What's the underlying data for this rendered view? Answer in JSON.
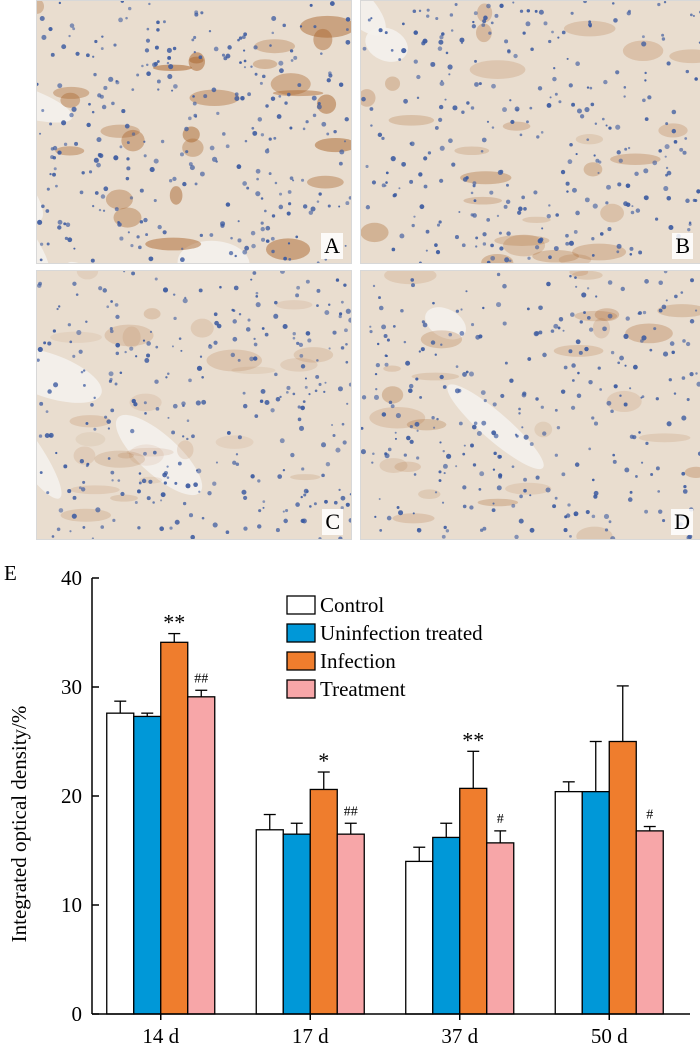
{
  "panels": [
    {
      "id": "A",
      "label": "A",
      "description": "intestinal villi, strong brown staining"
    },
    {
      "id": "B",
      "label": "B",
      "description": "intestinal villi, moderate staining"
    },
    {
      "id": "C",
      "label": "C",
      "description": "colonic crypts with goblet cells, light staining"
    },
    {
      "id": "D",
      "label": "D",
      "description": "crypts, moderate staining"
    }
  ],
  "tissue_colors": {
    "background": "#e9ddcf",
    "nuclei": "#3b5aa0",
    "stain": "#a8632a",
    "lumen": "#f4f1ec"
  },
  "chart_data": {
    "type": "bar",
    "panel_label": "E",
    "ylabel": "Integrated optical density/%",
    "ylim": [
      0,
      40
    ],
    "yticks": [
      0,
      10,
      20,
      30,
      40
    ],
    "categories": [
      "14 d",
      "17 d",
      "37 d",
      "50 d"
    ],
    "series": [
      {
        "name": "Control",
        "color": "#ffffff",
        "values": [
          27.6,
          16.9,
          14.0,
          20.4
        ],
        "errors": [
          1.1,
          1.4,
          1.3,
          0.9
        ]
      },
      {
        "name": "Uninfection treated",
        "color": "#0098d8",
        "values": [
          27.3,
          16.5,
          16.2,
          20.4
        ],
        "errors": [
          0.3,
          1.0,
          1.3,
          4.6
        ]
      },
      {
        "name": "Infection",
        "color": "#ef7d2d",
        "values": [
          34.1,
          20.6,
          20.7,
          25.0
        ],
        "errors": [
          0.8,
          1.6,
          3.4,
          5.1
        ]
      },
      {
        "name": "Treatment",
        "color": "#f7a6a8",
        "values": [
          29.1,
          16.5,
          15.7,
          16.8
        ],
        "errors": [
          0.6,
          1.0,
          1.1,
          0.4
        ]
      }
    ],
    "annotations": [
      {
        "category": 0,
        "series": 2,
        "text": "**"
      },
      {
        "category": 0,
        "series": 3,
        "text": "##"
      },
      {
        "category": 1,
        "series": 2,
        "text": "*"
      },
      {
        "category": 1,
        "series": 3,
        "text": "##"
      },
      {
        "category": 2,
        "series": 2,
        "text": "**"
      },
      {
        "category": 2,
        "series": 3,
        "text": "#"
      },
      {
        "category": 3,
        "series": 3,
        "text": "#"
      }
    ],
    "legend_position": "top-right",
    "grid": false
  }
}
